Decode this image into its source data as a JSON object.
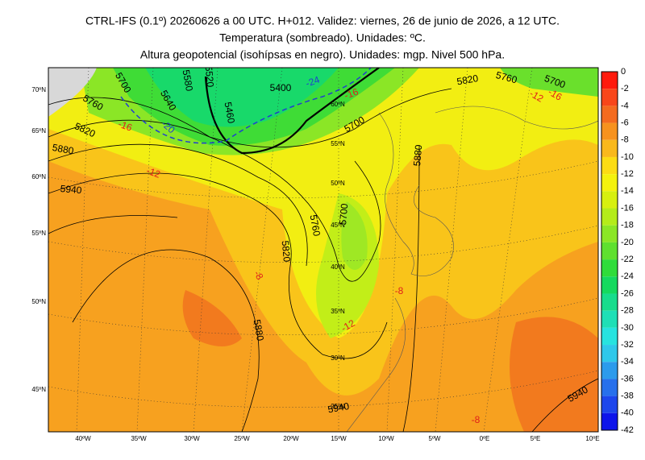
{
  "header": {
    "lines": [
      "CTRL-IFS (0.1º) 20260626 a 00 UTC. H+012. Validez: viernes, 26 de junio de 2026, a 12 UTC.",
      "Temperatura (sombreado). Unidades: ºC.",
      "Altura geopotencial (isohípsas en negro). Unidades: mgp. Nivel 500 hPa."
    ]
  },
  "colorbar": {
    "labels": [
      0,
      -2,
      -4,
      -6,
      -8,
      -10,
      -12,
      -14,
      -16,
      -18,
      -20,
      -22,
      -24,
      -26,
      -28,
      -30,
      -32,
      -34,
      -36,
      -38,
      -40,
      -42
    ],
    "colors": [
      "#ff1a0d",
      "#f8461a",
      "#f46b1f",
      "#f7921e",
      "#f9b81c",
      "#fcdc14",
      "#f4f20d",
      "#d7f00f",
      "#b4ec1a",
      "#8be626",
      "#5fe02f",
      "#2fdc3a",
      "#15d95e",
      "#18dc8c",
      "#1fdfb6",
      "#27e3df",
      "#2fc8ea",
      "#2c9bec",
      "#2770ec",
      "#1d46ec",
      "#0d14ea"
    ]
  },
  "map": {
    "lat_labels": [
      "70ºN",
      "65ºN",
      "60ºN",
      "55ºN",
      "50ºN",
      "45ºN"
    ],
    "lon_labels": [
      "40ºW",
      "35ºW",
      "30ºW",
      "25ºW",
      "20ºW",
      "15ºW",
      "10ºW",
      "5ºW",
      "0ºE",
      "5ºE",
      "10ºE"
    ],
    "inner_lat_labels": [
      "60ºN",
      "55ºN",
      "50ºN",
      "45ºN",
      "40ºN",
      "35ºN",
      "30ºN",
      "25ºN"
    ],
    "contour_labels": [
      {
        "text": "5700",
        "color": "#000000"
      },
      {
        "text": "5580",
        "color": "#000000"
      },
      {
        "text": "5640",
        "color": "#000000"
      },
      {
        "text": "5520",
        "color": "#000000"
      },
      {
        "text": "5460",
        "color": "#000000"
      },
      {
        "text": "5400",
        "color": "#000000"
      },
      {
        "text": "5760",
        "color": "#000000"
      },
      {
        "text": "5820",
        "color": "#000000"
      },
      {
        "text": "5880",
        "color": "#000000"
      },
      {
        "text": "5940",
        "color": "#000000"
      },
      {
        "text": "5700",
        "color": "#000000"
      },
      {
        "text": "5820",
        "color": "#000000"
      },
      {
        "text": "5760",
        "color": "#000000"
      },
      {
        "text": "5700",
        "color": "#000000"
      },
      {
        "text": "5880",
        "color": "#000000"
      },
      {
        "text": "5760",
        "color": "#000000"
      },
      {
        "text": "5700",
        "color": "#000000"
      },
      {
        "text": "5820",
        "color": "#000000"
      },
      {
        "text": "5880",
        "color": "#000000"
      },
      {
        "text": "5940",
        "color": "#000000"
      },
      {
        "text": "5940",
        "color": "#000000"
      },
      {
        "text": "-24",
        "color": "#1f3fd0"
      },
      {
        "text": "-20",
        "color": "#1f3fd0"
      },
      {
        "text": "-16",
        "color": "#e0201a"
      },
      {
        "text": "-16",
        "color": "#e0201a"
      },
      {
        "text": "-12",
        "color": "#e0201a"
      },
      {
        "text": "-12",
        "color": "#e0201a"
      },
      {
        "text": "-16",
        "color": "#e0201a"
      },
      {
        "text": "-12",
        "color": "#e0201a"
      },
      {
        "text": "-8",
        "color": "#e0201a"
      },
      {
        "text": "-8",
        "color": "#e0201a"
      },
      {
        "text": "-8",
        "color": "#e0201a"
      }
    ]
  }
}
